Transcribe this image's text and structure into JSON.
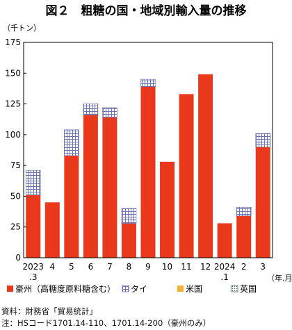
{
  "chart_data": {
    "type": "bar",
    "stacked": true,
    "title": "図２　粗糖の国・地域別輸入量の推移",
    "ylabel": "（千トン）",
    "xlabel": "（年.月）",
    "ylim": [
      0,
      175
    ],
    "yticks": [
      0,
      25,
      50,
      75,
      100,
      125,
      150,
      175
    ],
    "categories": [
      "2023\n.3",
      "4",
      "5",
      "6",
      "7",
      "8",
      "9",
      "10",
      "11",
      "12",
      "2024\n.1",
      "2",
      "3"
    ],
    "grid": false,
    "legend_position": "bottom",
    "series": [
      {
        "name": "豪州（高糖度原料糖含む）",
        "color": "#e8391c",
        "pattern": "solid",
        "values": [
          51,
          45,
          83,
          116,
          114,
          28,
          139,
          78,
          133,
          149,
          28,
          34,
          90
        ]
      },
      {
        "name": "タイ",
        "color": "#6a72b8",
        "pattern": "grid",
        "values": [
          20,
          0,
          21,
          9,
          8,
          12,
          6,
          0,
          0,
          0,
          0,
          7,
          11
        ]
      },
      {
        "name": "米国",
        "color": "#f2b233",
        "pattern": "solid",
        "values": [
          0,
          0,
          0,
          0,
          0,
          0,
          0,
          0,
          0,
          0,
          0,
          0,
          0
        ]
      },
      {
        "name": "英国",
        "color": "#4a6a6a",
        "pattern": "dots",
        "values": [
          0,
          0,
          0,
          0,
          0,
          0,
          0,
          0,
          0,
          0,
          0,
          0,
          0
        ]
      }
    ]
  },
  "footnotes": {
    "source": "資料：財務省「貿易統計」",
    "note": "注：HSコード1701.14-110、1701.14-200（豪州のみ）"
  }
}
